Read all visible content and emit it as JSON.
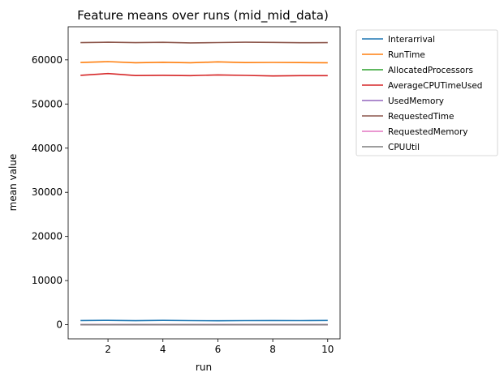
{
  "chart_data": {
    "type": "line",
    "title": "Feature means over runs (mid_mid_data)",
    "xlabel": "run",
    "ylabel": "mean value",
    "xlim": [
      0.55,
      10.45
    ],
    "ylim": [
      -3200,
      67500
    ],
    "xticks": [
      2,
      4,
      6,
      8,
      10
    ],
    "yticks": [
      0,
      10000,
      20000,
      30000,
      40000,
      50000,
      60000
    ],
    "grid": false,
    "legend_position": "outside-right",
    "x": [
      1,
      2,
      3,
      4,
      5,
      6,
      7,
      8,
      9,
      10
    ],
    "series": [
      {
        "name": "Interarrival",
        "color": "#1f77b4",
        "values": [
          950,
          980,
          920,
          990,
          940,
          900,
          930,
          950,
          940,
          960
        ]
      },
      {
        "name": "RunTime",
        "color": "#ff7f0e",
        "values": [
          59400,
          59600,
          59350,
          59450,
          59350,
          59550,
          59380,
          59420,
          59380,
          59350
        ]
      },
      {
        "name": "AllocatedProcessors",
        "color": "#2ca02c",
        "values": [
          30,
          31,
          30,
          31,
          30,
          30,
          31,
          30,
          30,
          31
        ]
      },
      {
        "name": "AverageCPUTimeUsed",
        "color": "#d62728",
        "values": [
          56500,
          56900,
          56450,
          56500,
          56420,
          56600,
          56480,
          56350,
          56420,
          56420
        ]
      },
      {
        "name": "UsedMemory",
        "color": "#9467bd",
        "values": [
          15,
          16,
          15,
          15,
          16,
          15,
          15,
          16,
          15,
          15
        ]
      },
      {
        "name": "RequestedTime",
        "color": "#8c564b",
        "values": [
          63900,
          64000,
          63900,
          63980,
          63850,
          63920,
          64000,
          63950,
          63880,
          63900
        ]
      },
      {
        "name": "RequestedMemory",
        "color": "#e377c2",
        "values": [
          40,
          42,
          41,
          40,
          41,
          42,
          40,
          41,
          40,
          41
        ]
      },
      {
        "name": "CPUUtil",
        "color": "#7f7f7f",
        "values": [
          1,
          1,
          1,
          1,
          1,
          1,
          1,
          1,
          1,
          1
        ]
      }
    ]
  }
}
